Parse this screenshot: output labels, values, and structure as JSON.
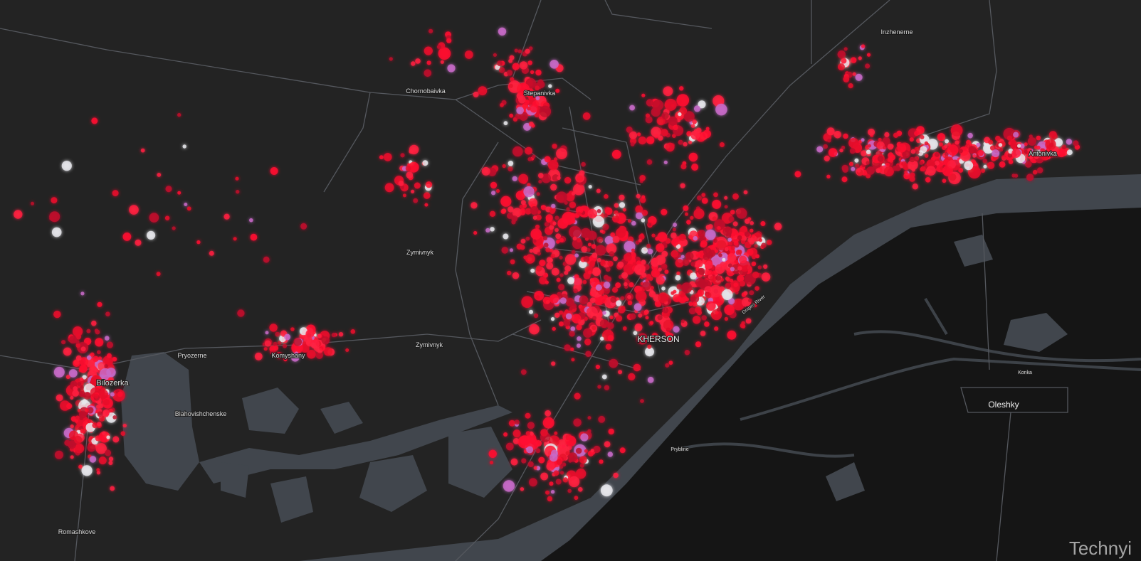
{
  "labels": [
    "Chornobaivka",
    "Stepanivka",
    "Zymivnyk",
    "Zymivnyk",
    "Pryozerne",
    "Komyshany",
    "Bilozerka",
    "Blahovishchenske",
    "Romashkove",
    "KHERSON",
    "Oleshky",
    "Inzhenerne",
    "Antonivka",
    "Dnipro River",
    "Konka",
    "Prybline"
  ],
  "watermark": "Technyi"
}
